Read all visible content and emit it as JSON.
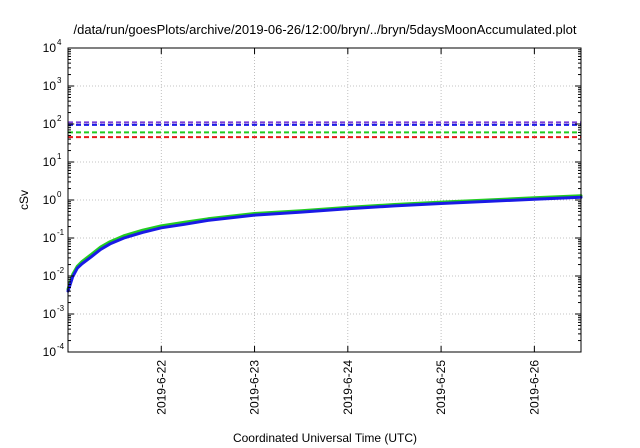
{
  "chart_data": {
    "type": "line",
    "title": "/data/run/goesPlots/archive/2019-06-26/12:00/bryn/../bryn/5daysMoonAccumulated.plot",
    "xlabel": "Coordinated Universal Time (UTC)",
    "ylabel": "cSv",
    "y_scale": "log",
    "ylim": [
      0.0001,
      10000
    ],
    "y_ticks": [
      {
        "base": "10",
        "exp": "-4",
        "value": 0.0001
      },
      {
        "base": "10",
        "exp": "-3",
        "value": 0.001
      },
      {
        "base": "10",
        "exp": "-2",
        "value": 0.01
      },
      {
        "base": "10",
        "exp": "-1",
        "value": 0.1
      },
      {
        "base": "10",
        "exp": "0",
        "value": 1
      },
      {
        "base": "10",
        "exp": "1",
        "value": 10
      },
      {
        "base": "10",
        "exp": "2",
        "value": 100
      },
      {
        "base": "10",
        "exp": "3",
        "value": 1000
      },
      {
        "base": "10",
        "exp": "4",
        "value": 10000
      }
    ],
    "xlim": [
      "2019-06-21 00:00",
      "2019-06-26 12:00"
    ],
    "x_ticks": [
      "2019-6-22",
      "2019-6-23",
      "2019-6-24",
      "2019-6-25",
      "2019-6-26"
    ],
    "grid": true,
    "threshold_lines": [
      {
        "value": 110,
        "color": "#7a3fd6",
        "style": "dashed"
      },
      {
        "value": 95,
        "color": "#1a1ae6",
        "style": "dashed"
      },
      {
        "value": 60,
        "color": "#22cc22",
        "style": "dashed"
      },
      {
        "value": 45,
        "color": "#e61a1a",
        "style": "dashed"
      }
    ],
    "series": [
      {
        "color": "#22cc22",
        "points": [
          [
            "2019-06-21 00:00",
            0.0045
          ],
          [
            "2019-06-21 01:12",
            0.011
          ],
          [
            "2019-06-21 02:24",
            0.018
          ],
          [
            "2019-06-21 03:36",
            0.024
          ],
          [
            "2019-06-21 06:00",
            0.037
          ],
          [
            "2019-06-21 08:24",
            0.058
          ],
          [
            "2019-06-21 10:48",
            0.08
          ],
          [
            "2019-06-21 14:24",
            0.115
          ],
          [
            "2019-06-21 19:12",
            0.16
          ],
          [
            "2019-06-22 00:00",
            0.21
          ],
          [
            "2019-06-22 06:00",
            0.26
          ],
          [
            "2019-06-22 12:00",
            0.32
          ],
          [
            "2019-06-23 00:00",
            0.44
          ],
          [
            "2019-06-23 12:00",
            0.52
          ],
          [
            "2019-06-24 00:00",
            0.64
          ],
          [
            "2019-06-24 12:00",
            0.76
          ],
          [
            "2019-06-25 00:00",
            0.88
          ],
          [
            "2019-06-25 12:00",
            1.0
          ],
          [
            "2019-06-26 00:00",
            1.15
          ],
          [
            "2019-06-26 12:00",
            1.3
          ]
        ]
      },
      {
        "color": "#1a1ae6",
        "points": [
          [
            "2019-06-21 00:00",
            0.004
          ],
          [
            "2019-06-21 01:12",
            0.0095
          ],
          [
            "2019-06-21 02:24",
            0.016
          ],
          [
            "2019-06-21 03:36",
            0.021
          ],
          [
            "2019-06-21 06:00",
            0.032
          ],
          [
            "2019-06-21 08:24",
            0.05
          ],
          [
            "2019-06-21 10:48",
            0.07
          ],
          [
            "2019-06-21 14:24",
            0.1
          ],
          [
            "2019-06-21 19:12",
            0.14
          ],
          [
            "2019-06-22 00:00",
            0.185
          ],
          [
            "2019-06-22 06:00",
            0.23
          ],
          [
            "2019-06-22 12:00",
            0.29
          ],
          [
            "2019-06-23 00:00",
            0.4
          ],
          [
            "2019-06-23 12:00",
            0.48
          ],
          [
            "2019-06-24 00:00",
            0.59
          ],
          [
            "2019-06-24 12:00",
            0.7
          ],
          [
            "2019-06-25 00:00",
            0.81
          ],
          [
            "2019-06-25 12:00",
            0.92
          ],
          [
            "2019-06-26 00:00",
            1.05
          ],
          [
            "2019-06-26 12:00",
            1.18
          ]
        ]
      }
    ]
  }
}
